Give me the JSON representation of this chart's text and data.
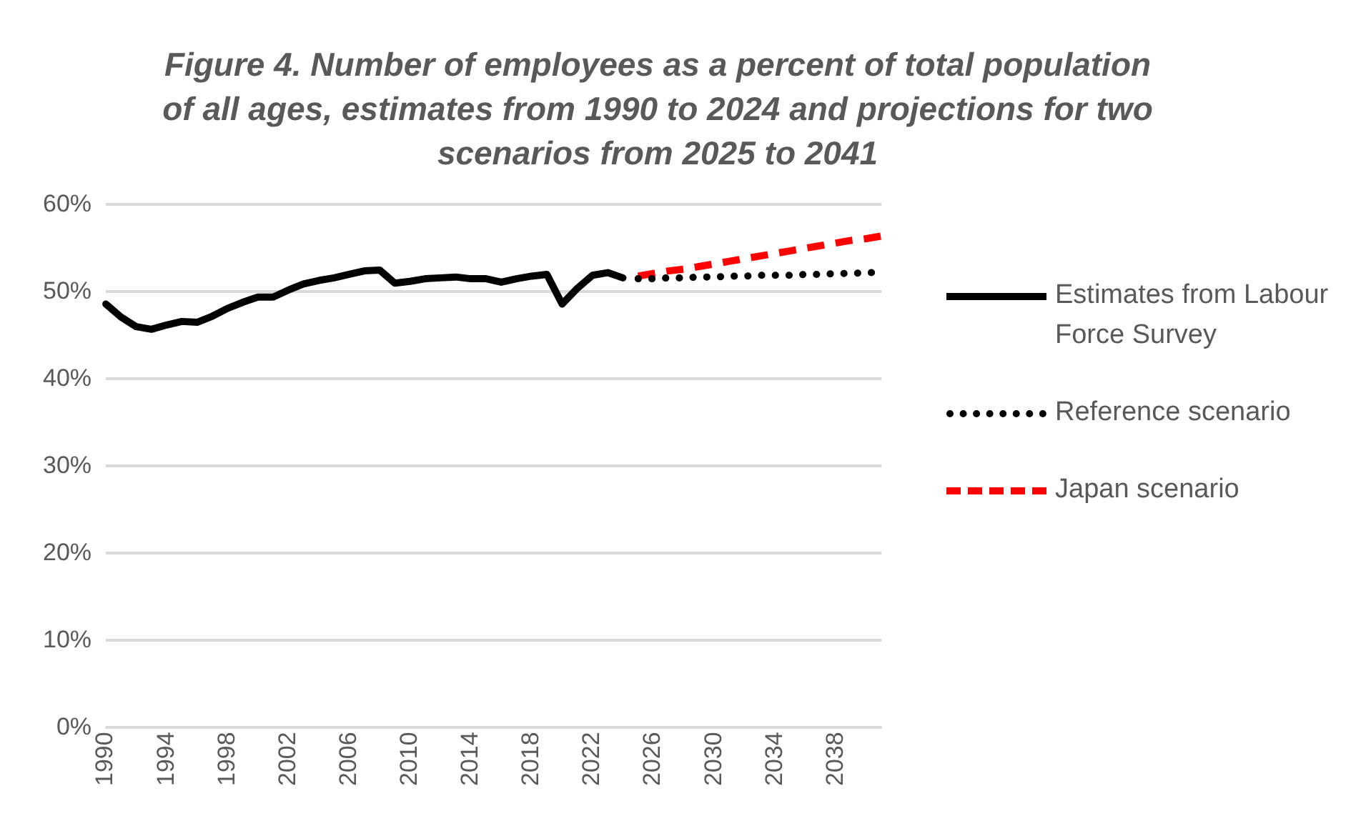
{
  "chart_data": {
    "type": "line",
    "title": "Figure 4. Number of employees as a percent of total population of all ages, estimates from 1990 to 2024 and projections for two scenarios from 2025 to 2041",
    "categories": [
      "1990",
      null,
      null,
      null,
      "1994",
      null,
      null,
      null,
      "1998",
      null,
      null,
      null,
      "2002",
      null,
      null,
      null,
      "2006",
      null,
      null,
      null,
      "2010",
      null,
      null,
      null,
      "2014",
      null,
      null,
      null,
      "2018",
      null,
      null,
      null,
      "2022",
      null,
      null,
      null,
      "2026",
      null,
      null,
      null,
      "2030",
      null,
      null,
      null,
      "2034",
      null,
      null,
      null,
      "2038",
      null,
      null,
      null
    ],
    "series": [
      {
        "name": "Estimates from Labour Force Survey",
        "color": "#000000",
        "line_style": "solid",
        "values": [
          48.6,
          47.1,
          46.0,
          45.7,
          46.2,
          46.6,
          46.5,
          47.2,
          48.1,
          48.8,
          49.4,
          49.4,
          50.2,
          50.9,
          51.3,
          51.6,
          52.0,
          52.4,
          52.5,
          51.0,
          51.2,
          51.5,
          51.6,
          51.7,
          51.5,
          51.5,
          51.1,
          51.5,
          51.8,
          52.0,
          48.6,
          50.4,
          51.9,
          52.2,
          51.6,
          null,
          null,
          null,
          null,
          null,
          null,
          null,
          null,
          null,
          null,
          null,
          null,
          null,
          null,
          null,
          null,
          null
        ]
      },
      {
        "name": "Reference scenario",
        "color": "#000000",
        "line_style": "dotted",
        "values": [
          null,
          null,
          null,
          null,
          null,
          null,
          null,
          null,
          null,
          null,
          null,
          null,
          null,
          null,
          null,
          null,
          null,
          null,
          null,
          null,
          null,
          null,
          null,
          null,
          null,
          null,
          null,
          null,
          null,
          null,
          null,
          null,
          null,
          null,
          null,
          51.5,
          51.5,
          51.6,
          51.6,
          51.7,
          51.7,
          51.8,
          51.8,
          51.9,
          51.9,
          51.9,
          52.0,
          52.0,
          52.1,
          52.1,
          52.2,
          52.2
        ]
      },
      {
        "name": "Japan scenario",
        "color": "#ff0000",
        "line_style": "dashed",
        "values": [
          null,
          null,
          null,
          null,
          null,
          null,
          null,
          null,
          null,
          null,
          null,
          null,
          null,
          null,
          null,
          null,
          null,
          null,
          null,
          null,
          null,
          null,
          null,
          null,
          null,
          null,
          null,
          null,
          null,
          null,
          null,
          null,
          null,
          null,
          null,
          51.8,
          52.1,
          52.4,
          52.6,
          52.9,
          53.2,
          53.5,
          53.8,
          54.1,
          54.4,
          54.7,
          55.0,
          55.3,
          55.6,
          55.9,
          56.1,
          56.4
        ]
      }
    ],
    "ylim": [
      0,
      60
    ],
    "yticks": [
      {
        "value": 0,
        "label": "0%"
      },
      {
        "value": 10,
        "label": "10%"
      },
      {
        "value": 20,
        "label": "20%"
      },
      {
        "value": 30,
        "label": "30%"
      },
      {
        "value": 40,
        "label": "40%"
      },
      {
        "value": 50,
        "label": "50%"
      },
      {
        "value": 60,
        "label": "60%"
      }
    ],
    "grid": "y",
    "legend": "right",
    "marker": "none"
  }
}
